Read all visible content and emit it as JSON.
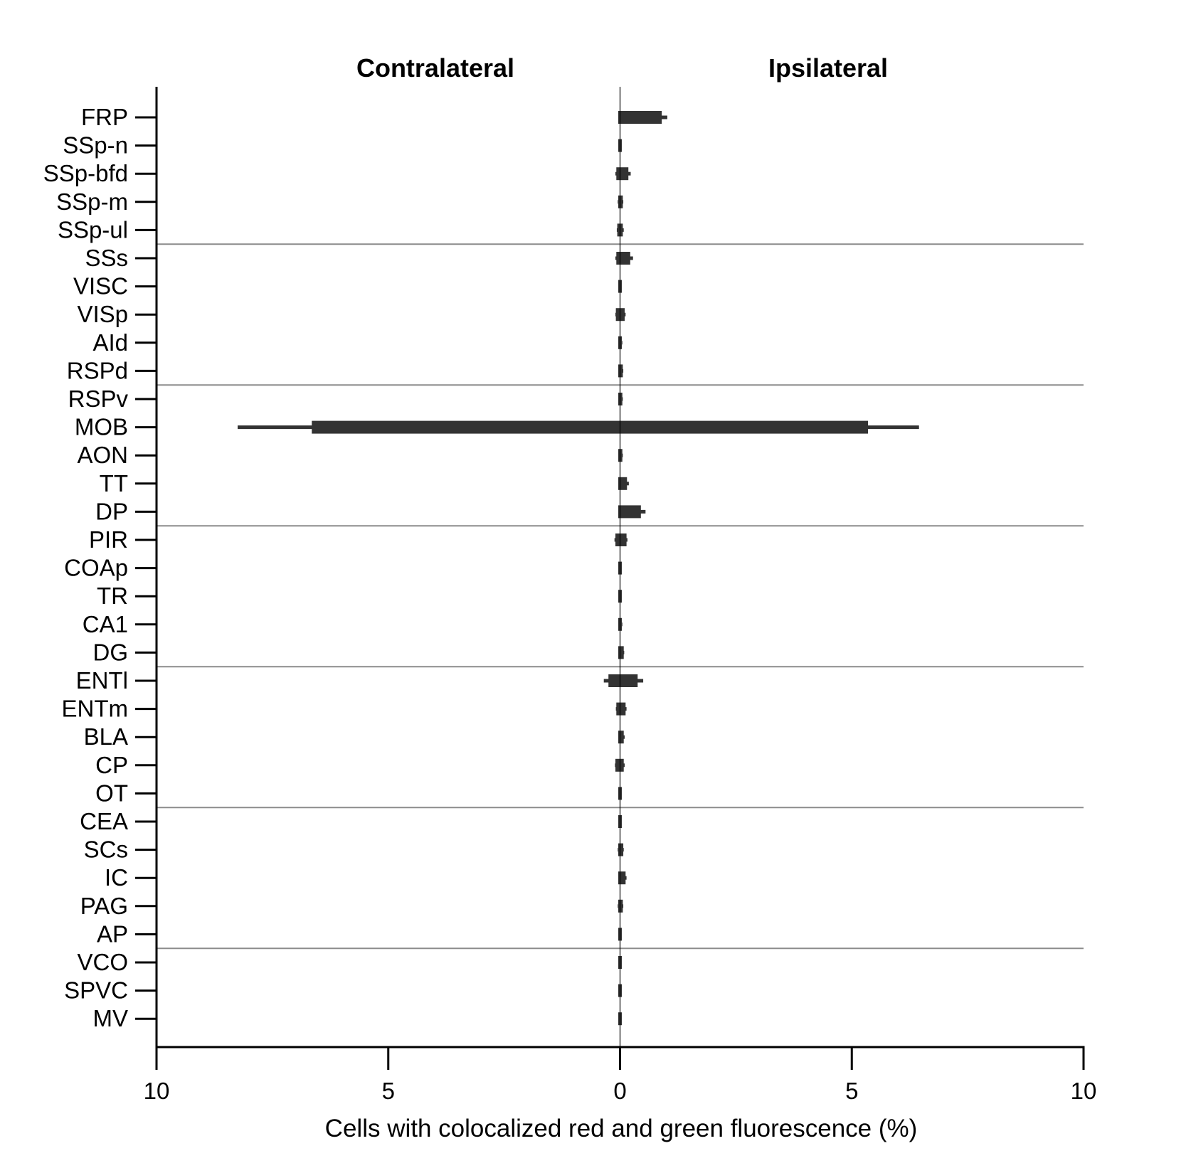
{
  "chart_data": {
    "type": "bar",
    "orientation": "horizontal-bidirectional",
    "panel_titles": {
      "left": "Contralateral",
      "right": "Ipsilateral"
    },
    "xlabel": "Cells with colocalized red and green fluorescence (%)",
    "ylabel": "",
    "xlim": [
      -10,
      10
    ],
    "x_tick_values": [
      -10,
      -5,
      0,
      5,
      10
    ],
    "x_tick_labels": [
      "10",
      "5",
      "0",
      "5",
      "10"
    ],
    "group_separators_after": [
      "SSp-ul",
      "RSPd",
      "DP",
      "DG",
      "OT",
      "AP"
    ],
    "categories": [
      "FRP",
      "SSp-n",
      "SSp-bfd",
      "SSp-m",
      "SSp-ul",
      "SSs",
      "VISC",
      "VISp",
      "AId",
      "RSPd",
      "RSPv",
      "MOB",
      "AON",
      "TT",
      "DP",
      "PIR",
      "COAp",
      "TR",
      "CA1",
      "DG",
      "ENTl",
      "ENTm",
      "BLA",
      "CP",
      "OT",
      "CEA",
      "SCs",
      "IC",
      "PAG",
      "AP",
      "VCO",
      "SPVC",
      "MV"
    ],
    "series": [
      {
        "name": "Contralateral",
        "values": [
          0.0,
          0.0,
          0.08,
          0.04,
          0.06,
          0.08,
          0.0,
          0.09,
          0.0,
          0.0,
          0.0,
          6.65,
          0.0,
          0.0,
          0.0,
          0.1,
          0.0,
          0.0,
          0.0,
          0.0,
          0.25,
          0.08,
          0.0,
          0.1,
          0.0,
          0.0,
          0.04,
          0.0,
          0.04,
          0.0,
          0.0,
          0.0,
          0.0
        ],
        "errors": [
          0.0,
          0.0,
          0.02,
          0.01,
          0.01,
          0.02,
          0.0,
          0.01,
          0.0,
          0.0,
          0.0,
          1.6,
          0.0,
          0.0,
          0.0,
          0.02,
          0.0,
          0.0,
          0.0,
          0.0,
          0.1,
          0.01,
          0.0,
          0.01,
          0.0,
          0.0,
          0.01,
          0.0,
          0.01,
          0.0,
          0.0,
          0.0,
          0.0
        ]
      },
      {
        "name": "Ipsilateral",
        "values": [
          0.9,
          0.03,
          0.18,
          0.06,
          0.06,
          0.22,
          0.01,
          0.1,
          0.04,
          0.06,
          0.05,
          5.35,
          0.05,
          0.15,
          0.45,
          0.14,
          0.02,
          0.02,
          0.04,
          0.08,
          0.38,
          0.12,
          0.08,
          0.08,
          0.03,
          0.01,
          0.07,
          0.12,
          0.06,
          0.01,
          0.03,
          0.01,
          0.02
        ],
        "errors": [
          0.12,
          0.01,
          0.05,
          0.01,
          0.02,
          0.06,
          0.0,
          0.02,
          0.01,
          0.01,
          0.01,
          1.1,
          0.01,
          0.04,
          0.1,
          0.02,
          0.0,
          0.0,
          0.01,
          0.01,
          0.12,
          0.02,
          0.02,
          0.02,
          0.01,
          0.0,
          0.01,
          0.02,
          0.01,
          0.0,
          0.01,
          0.0,
          0.0
        ]
      }
    ],
    "colors": {
      "bar": "#333333",
      "separator": "#8c8c8c",
      "axis": "#000000"
    },
    "grid": false,
    "legend": "none"
  }
}
